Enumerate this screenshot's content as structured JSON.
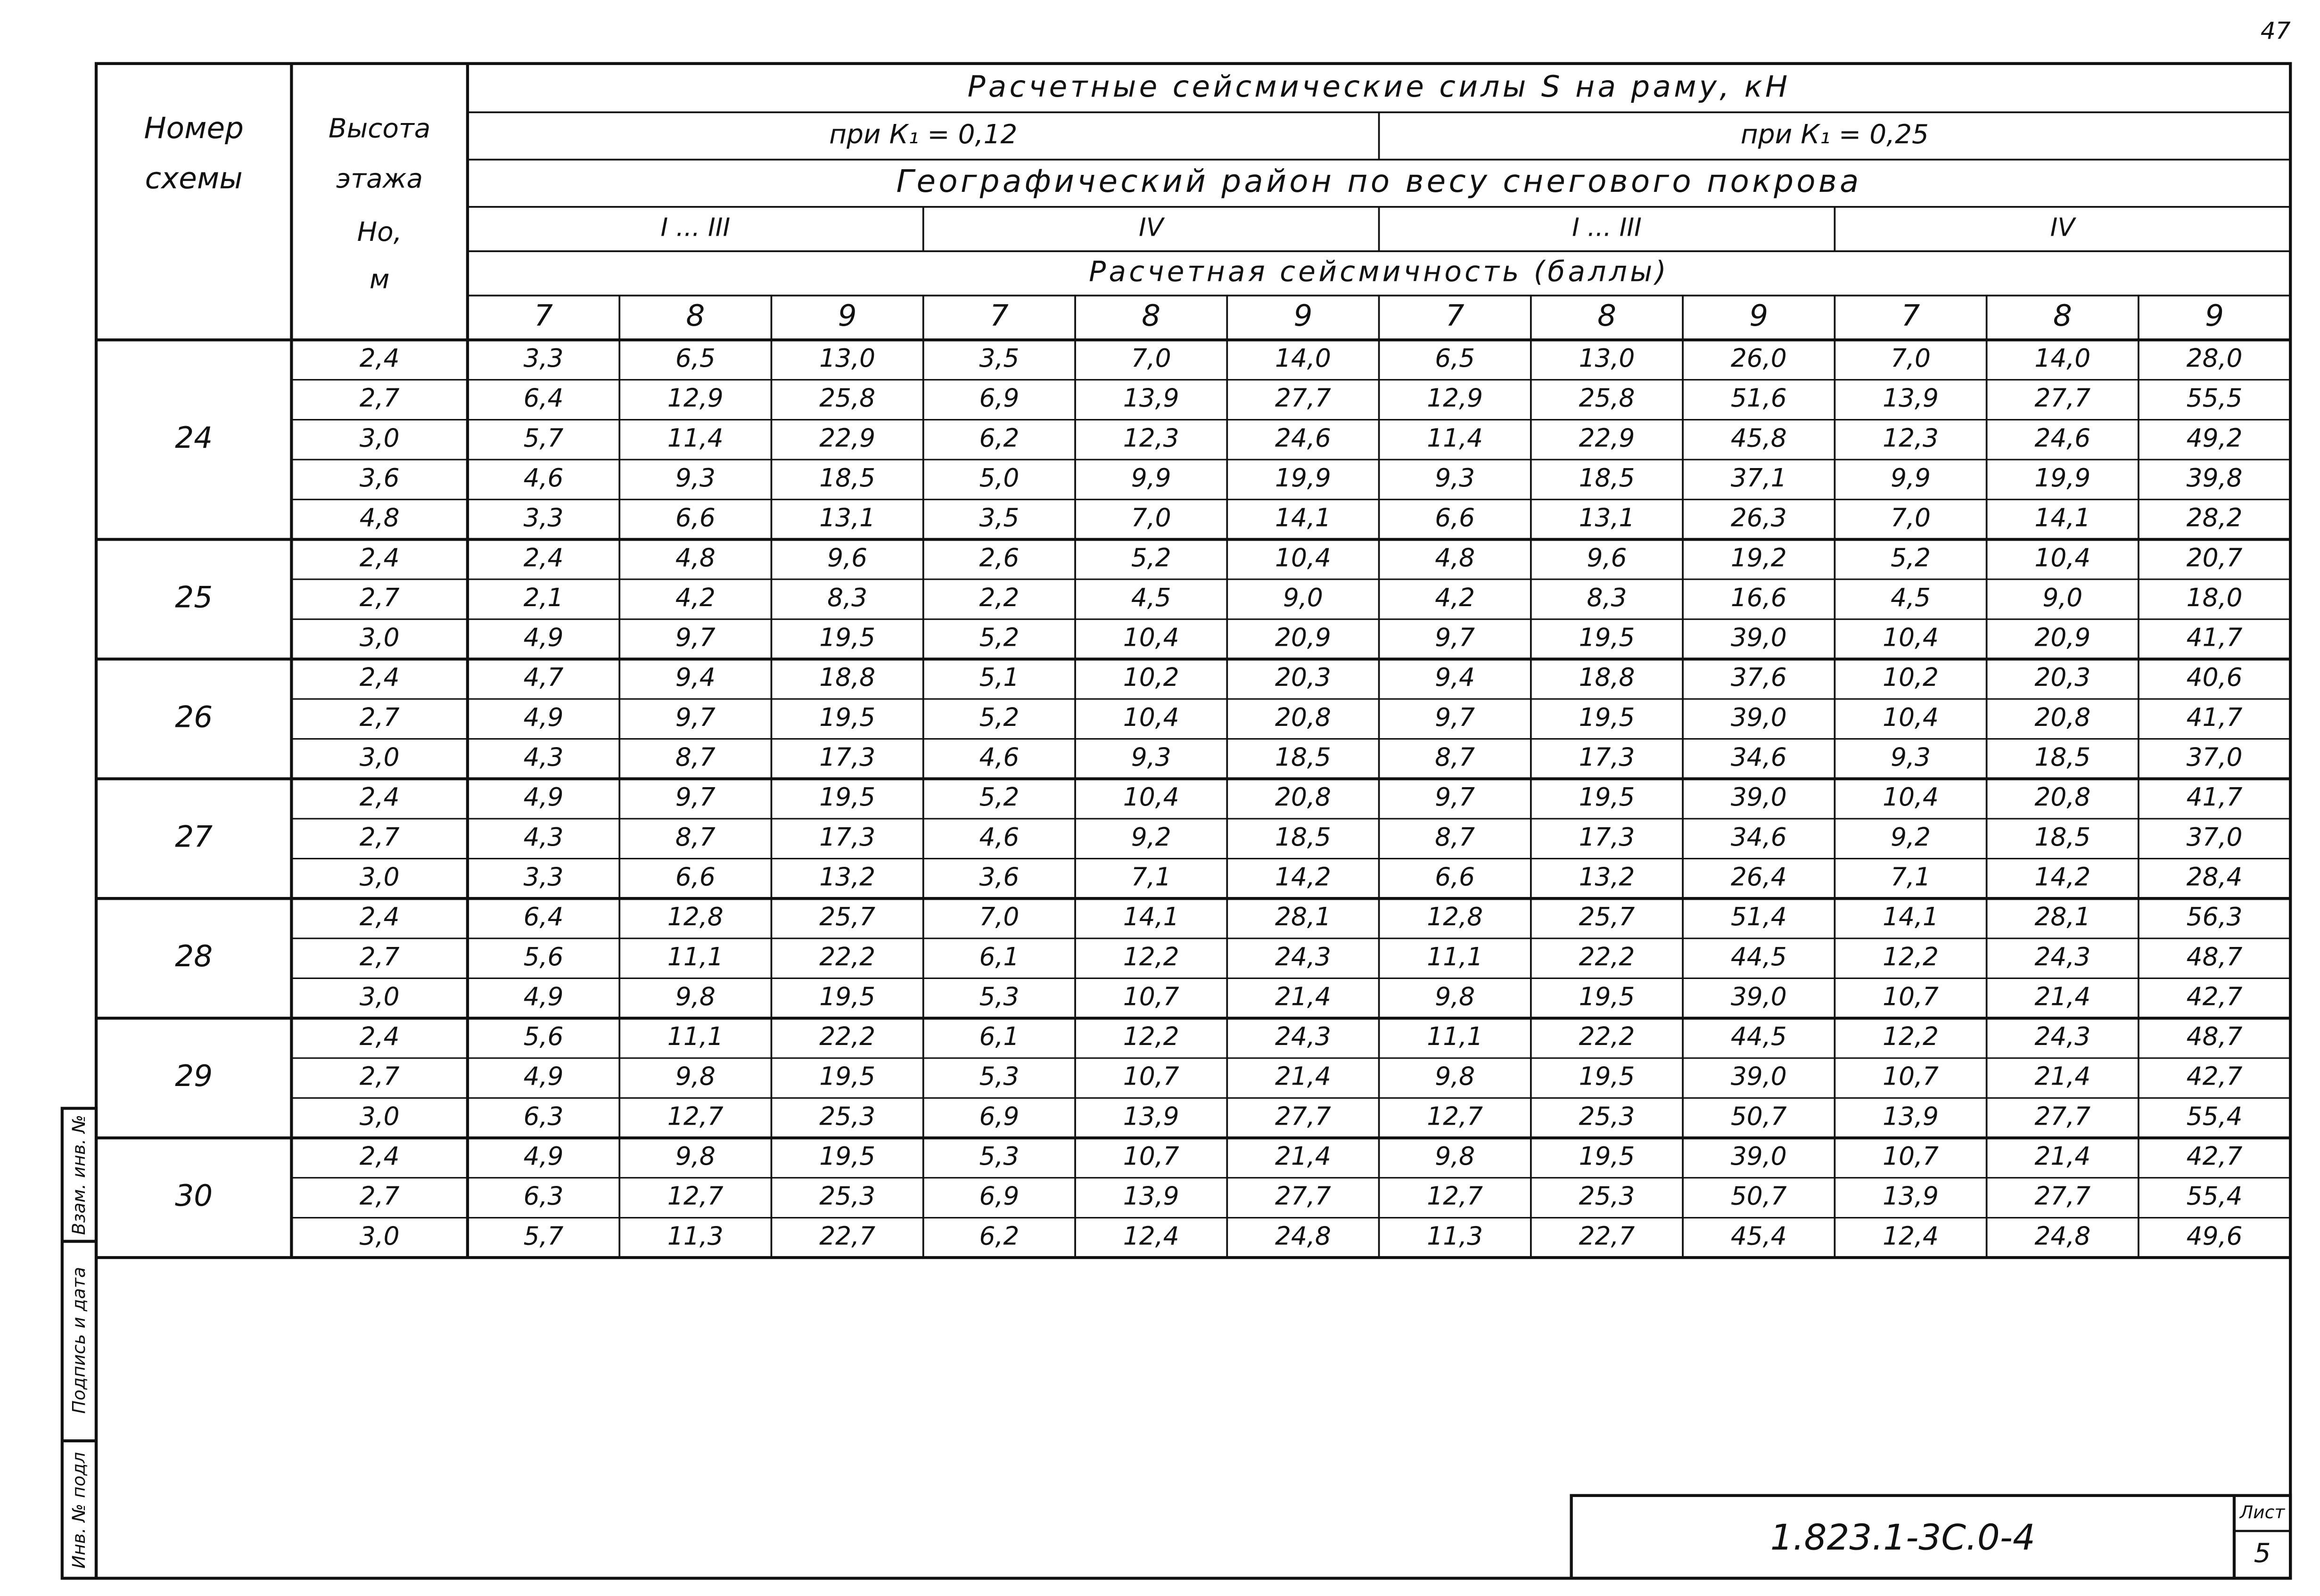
{
  "page_number": "47",
  "stamp": {
    "replaced_inventory": "Взам. инв. №",
    "signature_date": "Подпись и дата",
    "original_inventory": "Инв. № подл"
  },
  "table": {
    "header": {
      "scheme": [
        "Номер",
        "схемы"
      ],
      "height": [
        "Высота",
        "этажа",
        "Но,",
        "м"
      ],
      "title": "Расчетные сейсмические силы S на раму, кН",
      "k_groups": [
        "при К₁ = 0,12",
        "при К₁ = 0,25"
      ],
      "snow": "Географический район по весу снегового покрова",
      "regions": [
        "I ... III",
        "IV",
        "I ... III",
        "IV"
      ],
      "seismicity": "Расчетная сейсмичность (баллы)",
      "intensities": [
        "7",
        "8",
        "9"
      ]
    },
    "groups": [
      {
        "scheme": "24",
        "rows": [
          {
            "height": "2,4",
            "values": [
              "3,3",
              "6,5",
              "13,0",
              "3,5",
              "7,0",
              "14,0",
              "6,5",
              "13,0",
              "26,0",
              "7,0",
              "14,0",
              "28,0"
            ]
          },
          {
            "height": "2,7",
            "values": [
              "6,4",
              "12,9",
              "25,8",
              "6,9",
              "13,9",
              "27,7",
              "12,9",
              "25,8",
              "51,6",
              "13,9",
              "27,7",
              "55,5"
            ]
          },
          {
            "height": "3,0",
            "values": [
              "5,7",
              "11,4",
              "22,9",
              "6,2",
              "12,3",
              "24,6",
              "11,4",
              "22,9",
              "45,8",
              "12,3",
              "24,6",
              "49,2"
            ]
          },
          {
            "height": "3,6",
            "values": [
              "4,6",
              "9,3",
              "18,5",
              "5,0",
              "9,9",
              "19,9",
              "9,3",
              "18,5",
              "37,1",
              "9,9",
              "19,9",
              "39,8"
            ]
          },
          {
            "height": "4,8",
            "values": [
              "3,3",
              "6,6",
              "13,1",
              "3,5",
              "7,0",
              "14,1",
              "6,6",
              "13,1",
              "26,3",
              "7,0",
              "14,1",
              "28,2"
            ]
          }
        ]
      },
      {
        "scheme": "25",
        "rows": [
          {
            "height": "2,4",
            "values": [
              "2,4",
              "4,8",
              "9,6",
              "2,6",
              "5,2",
              "10,4",
              "4,8",
              "9,6",
              "19,2",
              "5,2",
              "10,4",
              "20,7"
            ]
          },
          {
            "height": "2,7",
            "values": [
              "2,1",
              "4,2",
              "8,3",
              "2,2",
              "4,5",
              "9,0",
              "4,2",
              "8,3",
              "16,6",
              "4,5",
              "9,0",
              "18,0"
            ]
          },
          {
            "height": "3,0",
            "values": [
              "4,9",
              "9,7",
              "19,5",
              "5,2",
              "10,4",
              "20,9",
              "9,7",
              "19,5",
              "39,0",
              "10,4",
              "20,9",
              "41,7"
            ]
          }
        ]
      },
      {
        "scheme": "26",
        "rows": [
          {
            "height": "2,4",
            "values": [
              "4,7",
              "9,4",
              "18,8",
              "5,1",
              "10,2",
              "20,3",
              "9,4",
              "18,8",
              "37,6",
              "10,2",
              "20,3",
              "40,6"
            ]
          },
          {
            "height": "2,7",
            "values": [
              "4,9",
              "9,7",
              "19,5",
              "5,2",
              "10,4",
              "20,8",
              "9,7",
              "19,5",
              "39,0",
              "10,4",
              "20,8",
              "41,7"
            ]
          },
          {
            "height": "3,0",
            "values": [
              "4,3",
              "8,7",
              "17,3",
              "4,6",
              "9,3",
              "18,5",
              "8,7",
              "17,3",
              "34,6",
              "9,3",
              "18,5",
              "37,0"
            ]
          }
        ]
      },
      {
        "scheme": "27",
        "rows": [
          {
            "height": "2,4",
            "values": [
              "4,9",
              "9,7",
              "19,5",
              "5,2",
              "10,4",
              "20,8",
              "9,7",
              "19,5",
              "39,0",
              "10,4",
              "20,8",
              "41,7"
            ]
          },
          {
            "height": "2,7",
            "values": [
              "4,3",
              "8,7",
              "17,3",
              "4,6",
              "9,2",
              "18,5",
              "8,7",
              "17,3",
              "34,6",
              "9,2",
              "18,5",
              "37,0"
            ]
          },
          {
            "height": "3,0",
            "values": [
              "3,3",
              "6,6",
              "13,2",
              "3,6",
              "7,1",
              "14,2",
              "6,6",
              "13,2",
              "26,4",
              "7,1",
              "14,2",
              "28,4"
            ]
          }
        ]
      },
      {
        "scheme": "28",
        "rows": [
          {
            "height": "2,4",
            "values": [
              "6,4",
              "12,8",
              "25,7",
              "7,0",
              "14,1",
              "28,1",
              "12,8",
              "25,7",
              "51,4",
              "14,1",
              "28,1",
              "56,3"
            ]
          },
          {
            "height": "2,7",
            "values": [
              "5,6",
              "11,1",
              "22,2",
              "6,1",
              "12,2",
              "24,3",
              "11,1",
              "22,2",
              "44,5",
              "12,2",
              "24,3",
              "48,7"
            ]
          },
          {
            "height": "3,0",
            "values": [
              "4,9",
              "9,8",
              "19,5",
              "5,3",
              "10,7",
              "21,4",
              "9,8",
              "19,5",
              "39,0",
              "10,7",
              "21,4",
              "42,7"
            ]
          }
        ]
      },
      {
        "scheme": "29",
        "rows": [
          {
            "height": "2,4",
            "values": [
              "5,6",
              "11,1",
              "22,2",
              "6,1",
              "12,2",
              "24,3",
              "11,1",
              "22,2",
              "44,5",
              "12,2",
              "24,3",
              "48,7"
            ]
          },
          {
            "height": "2,7",
            "values": [
              "4,9",
              "9,8",
              "19,5",
              "5,3",
              "10,7",
              "21,4",
              "9,8",
              "19,5",
              "39,0",
              "10,7",
              "21,4",
              "42,7"
            ]
          },
          {
            "height": "3,0",
            "values": [
              "6,3",
              "12,7",
              "25,3",
              "6,9",
              "13,9",
              "27,7",
              "12,7",
              "25,3",
              "50,7",
              "13,9",
              "27,7",
              "55,4"
            ]
          }
        ]
      },
      {
        "scheme": "30",
        "rows": [
          {
            "height": "2,4",
            "values": [
              "4,9",
              "9,8",
              "19,5",
              "5,3",
              "10,7",
              "21,4",
              "9,8",
              "19,5",
              "39,0",
              "10,7",
              "21,4",
              "42,7"
            ]
          },
          {
            "height": "2,7",
            "values": [
              "6,3",
              "12,7",
              "25,3",
              "6,9",
              "13,9",
              "27,7",
              "12,7",
              "25,3",
              "50,7",
              "13,9",
              "27,7",
              "55,4"
            ]
          },
          {
            "height": "3,0",
            "values": [
              "5,7",
              "11,3",
              "22,7",
              "6,2",
              "12,4",
              "24,8",
              "11,3",
              "22,7",
              "45,4",
              "12,4",
              "24,8",
              "49,6"
            ]
          }
        ]
      }
    ]
  },
  "footer": {
    "document": "1.823.1-3С.0-4",
    "sheet_label": "Лист",
    "sheet": "5"
  }
}
